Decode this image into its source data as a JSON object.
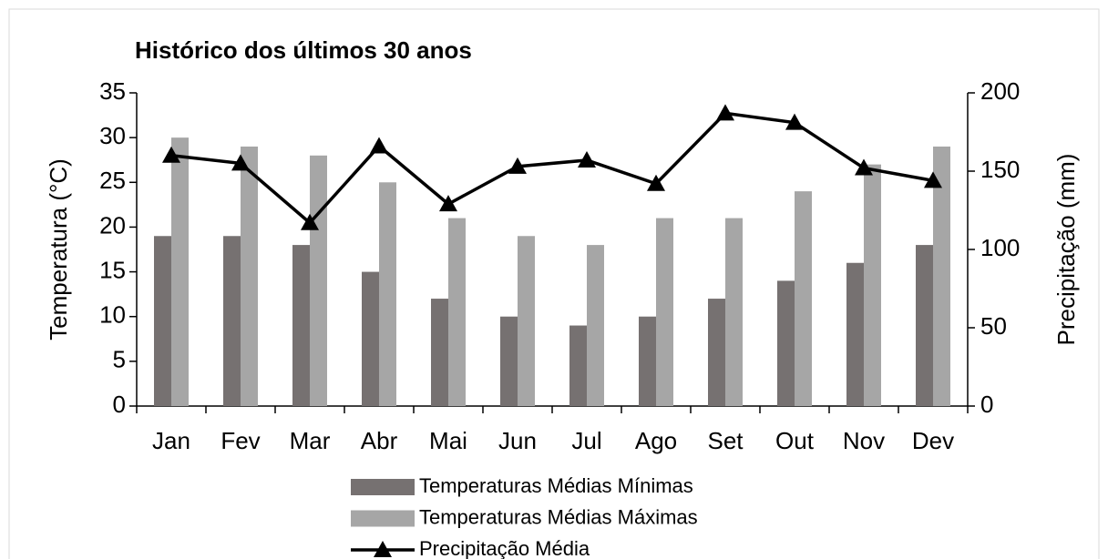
{
  "chart_data": {
    "type": "bar",
    "title": "Histórico dos últimos 30 anos",
    "y_label": "Temperatura (°C)",
    "y2_label": "Precipitação (mm)",
    "categories": [
      "Jan",
      "Fev",
      "Mar",
      "Abr",
      "Mai",
      "Jun",
      "Jul",
      "Ago",
      "Set",
      "Out",
      "Nov",
      "Dev"
    ],
    "series": [
      {
        "name": "Temperaturas Médias Mínimas",
        "color": "#767171",
        "values": [
          19,
          19,
          18,
          15,
          12,
          10,
          9,
          10,
          12,
          14,
          16,
          18
        ]
      },
      {
        "name": "Temperaturas Médias Máximas",
        "color": "#a6a6a6",
        "values": [
          30,
          29,
          28,
          25,
          21,
          19,
          18,
          21,
          21,
          24,
          27,
          29
        ]
      },
      {
        "name": "Precipitação Média",
        "color": "#000000",
        "axis": "y2",
        "kind": "line",
        "marker": "triangle",
        "values": [
          160,
          155,
          117,
          166,
          129,
          153,
          157,
          142,
          187,
          181,
          152,
          144
        ]
      }
    ],
    "ylim": [
      0,
      35
    ],
    "yticks": [
      0,
      5,
      10,
      15,
      20,
      25,
      30,
      35
    ],
    "y2lim": [
      0,
      200
    ],
    "y2ticks": [
      0,
      50,
      100,
      150,
      200
    ],
    "legend": "bottom"
  }
}
